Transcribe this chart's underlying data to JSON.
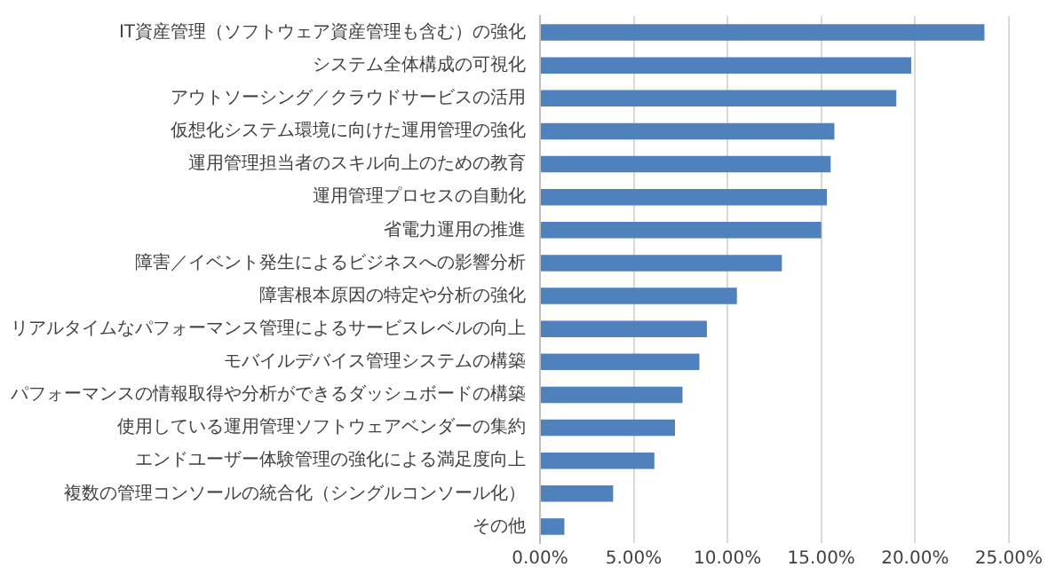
{
  "chart_data": {
    "type": "bar",
    "orientation": "horizontal",
    "categories": [
      "IT資産管理（ソフトウェア資産管理も含む）の強化",
      "システム全体構成の可視化",
      "アウトソーシング／クラウドサービスの活用",
      "仮想化システム環境に向けた運用管理の強化",
      "運用管理担当者のスキル向上のための教育",
      "運用管理プロセスの自動化",
      "省電力運用の推進",
      "障害／イベント発生によるビジネスへの影響分析",
      "障害根本原因の特定や分析の強化",
      "リアルタイムなパフォーマンス管理によるサービスレベルの向上",
      "モバイルデバイス管理システムの構築",
      "パフォーマンスの情報取得や分析ができるダッシュボードの構築",
      "使用している運用管理ソフトウェアベンダーの集約",
      "エンドユーザー体験管理の強化による満足度向上",
      "複数の管理コンソールの統合化（シングルコンソール化）",
      "その他"
    ],
    "values": [
      23.7,
      19.8,
      19.0,
      15.7,
      15.5,
      15.3,
      15.0,
      12.9,
      10.5,
      8.9,
      8.5,
      7.6,
      7.2,
      6.1,
      3.9,
      1.3
    ],
    "color": "#4f81bd",
    "xlim": [
      0,
      25
    ],
    "xticks": [
      {
        "value": 0,
        "label": "0.00%"
      },
      {
        "value": 5,
        "label": "5.00%"
      },
      {
        "value": 10,
        "label": "10.00%"
      },
      {
        "value": 15,
        "label": "15.00%"
      },
      {
        "value": 20,
        "label": "20.00%"
      },
      {
        "value": 25,
        "label": "25.00%"
      }
    ],
    "grid": "x"
  }
}
